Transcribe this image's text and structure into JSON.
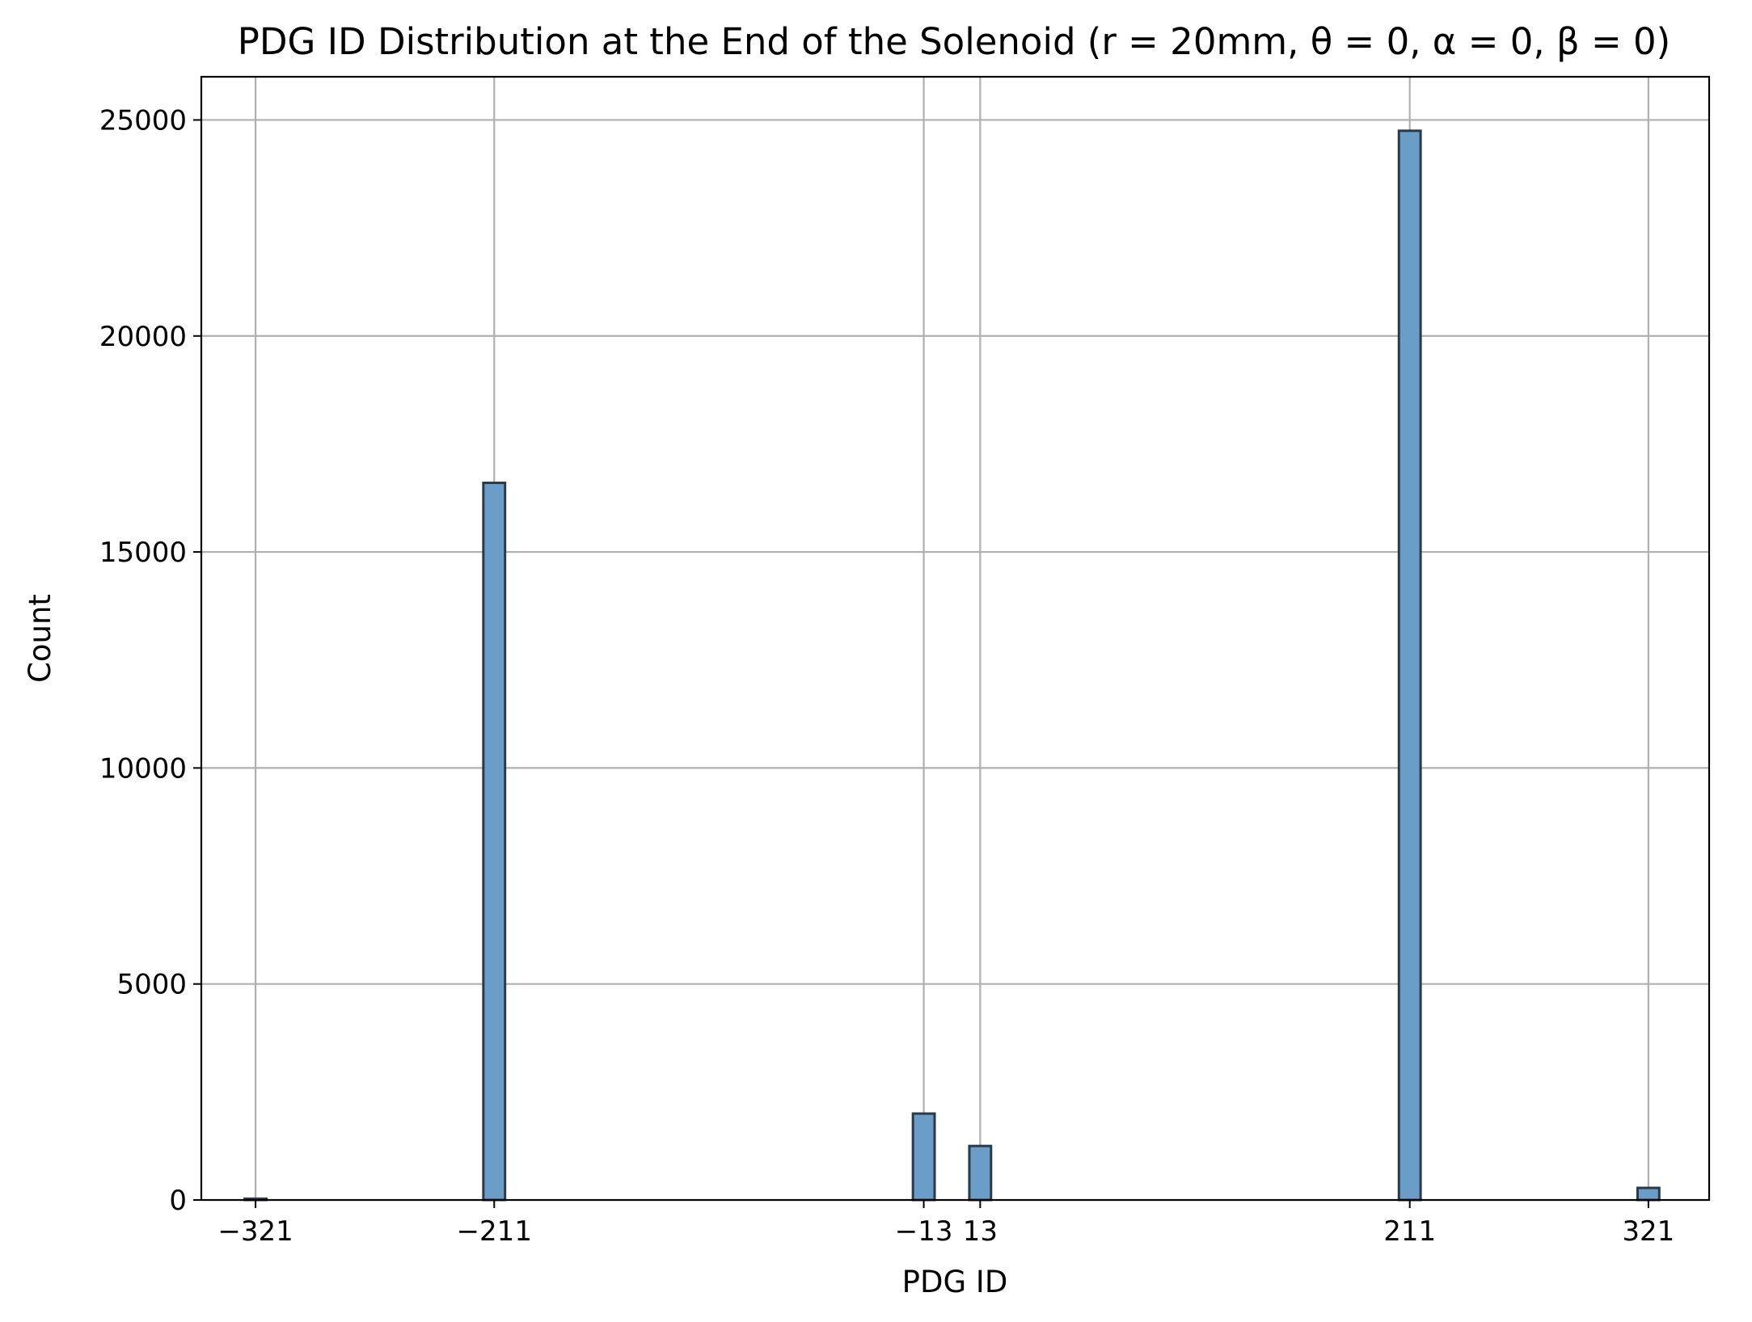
{
  "chart_data": {
    "type": "bar",
    "title": "PDG ID Distribution at the End of the Solenoid (r = 20mm, θ = 0, α = 0, β = 0)",
    "xlabel": "PDG ID",
    "ylabel": "Count",
    "xlim": [
      -346,
      349
    ],
    "ylim": [
      0,
      26000
    ],
    "bin_width": 10,
    "x_ticks": [
      -321,
      -211,
      -13,
      13,
      211,
      321
    ],
    "x_tick_labels": [
      "−321",
      "−211",
      "−13",
      "13",
      "211",
      "321"
    ],
    "y_ticks": [
      0,
      5000,
      10000,
      15000,
      20000,
      25000
    ],
    "y_tick_labels": [
      "0",
      "5000",
      "10000",
      "15000",
      "20000",
      "25000"
    ],
    "categories": [
      "-321",
      "-211",
      "-13",
      "13",
      "211",
      "321"
    ],
    "x": [
      -321,
      -211,
      -13,
      13,
      211,
      321
    ],
    "values": [
      30,
      16600,
      2000,
      1250,
      24750,
      280
    ],
    "grid": true,
    "bar_color": "#6a9ec9",
    "edge_color": "#2b3a47",
    "grid_color": "#b0b0b0"
  }
}
